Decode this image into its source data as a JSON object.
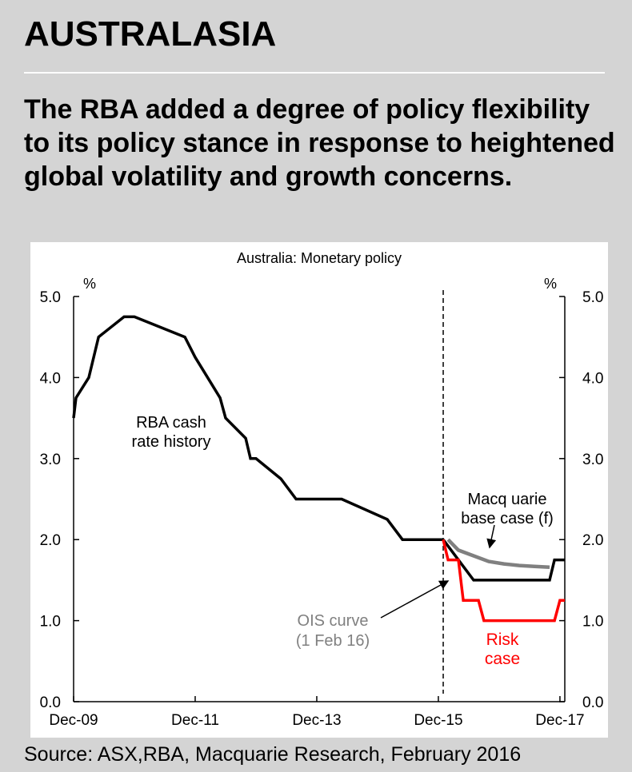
{
  "header": {
    "section": "AUSTRALASIA",
    "headline": "The RBA added a degree of policy flexibility to its policy stance in response to heightened global volatility and growth concerns."
  },
  "footer": {
    "source": "Source: ASX,RBA, Macquarie Research, February 2016"
  },
  "chart_data": {
    "type": "line",
    "title": "Australia: Monetary policy",
    "ylabel_left": "%",
    "ylabel_right": "%",
    "ylim": [
      0,
      5
    ],
    "yticks": [
      "5.0",
      "4.0",
      "3.0",
      "2.0",
      "1.0",
      "0.0"
    ],
    "ytick_values": [
      5,
      4,
      3,
      2,
      1,
      0
    ],
    "xlim": [
      2009.92,
      2018.0
    ],
    "xticks": [
      "Dec-09",
      "Dec-11",
      "Dec-13",
      "Dec-15",
      "Dec-17"
    ],
    "xtick_values": [
      2009.92,
      2011.92,
      2013.92,
      2015.92,
      2017.92
    ],
    "forecast_start": 2016.0,
    "series": [
      {
        "name": "RBA cash rate history",
        "color": "#000000",
        "x": [
          2009.92,
          2009.96,
          2010.17,
          2010.33,
          2010.75,
          2010.92,
          2011.75,
          2011.92,
          2012.33,
          2012.42,
          2012.75,
          2012.83,
          2012.92,
          2013.33,
          2013.58,
          2014.33,
          2015.08,
          2015.33,
          2016.0
        ],
        "y": [
          3.5,
          3.75,
          4.0,
          4.5,
          4.75,
          4.75,
          4.5,
          4.25,
          3.75,
          3.5,
          3.25,
          3.0,
          3.0,
          2.75,
          2.5,
          2.5,
          2.25,
          2.0,
          2.0
        ]
      },
      {
        "name": "Macquarie base case (f)",
        "color": "#000000",
        "x": [
          2016.0,
          2016.25,
          2016.5,
          2017.75,
          2017.83,
          2018.0
        ],
        "y": [
          2.0,
          1.75,
          1.5,
          1.5,
          1.75,
          1.75
        ]
      },
      {
        "name": "OIS curve (1 Feb 16)",
        "color": "#808080",
        "x": [
          2016.08,
          2016.25,
          2016.5,
          2016.75,
          2017.0,
          2017.25,
          2017.5,
          2017.75
        ],
        "y": [
          2.0,
          1.87,
          1.8,
          1.73,
          1.7,
          1.68,
          1.67,
          1.66
        ]
      },
      {
        "name": "Risk case",
        "color": "#ff0000",
        "x": [
          2016.0,
          2016.08,
          2016.25,
          2016.33,
          2016.58,
          2016.67,
          2017.83,
          2017.92,
          2018.0
        ],
        "y": [
          2.0,
          1.75,
          1.75,
          1.25,
          1.25,
          1.0,
          1.0,
          1.25,
          1.25
        ]
      }
    ],
    "annotations": {
      "rba_history": [
        "RBA cash",
        "rate history"
      ],
      "base_case": [
        "Macq uarie",
        "base case (f)"
      ],
      "ois": [
        "OIS curve",
        "(1 Feb 16)"
      ],
      "risk": [
        "Risk",
        "case"
      ]
    },
    "colors": {
      "ois_label": "#808080",
      "risk_label": "#ff0000",
      "axis": "#000000"
    }
  }
}
